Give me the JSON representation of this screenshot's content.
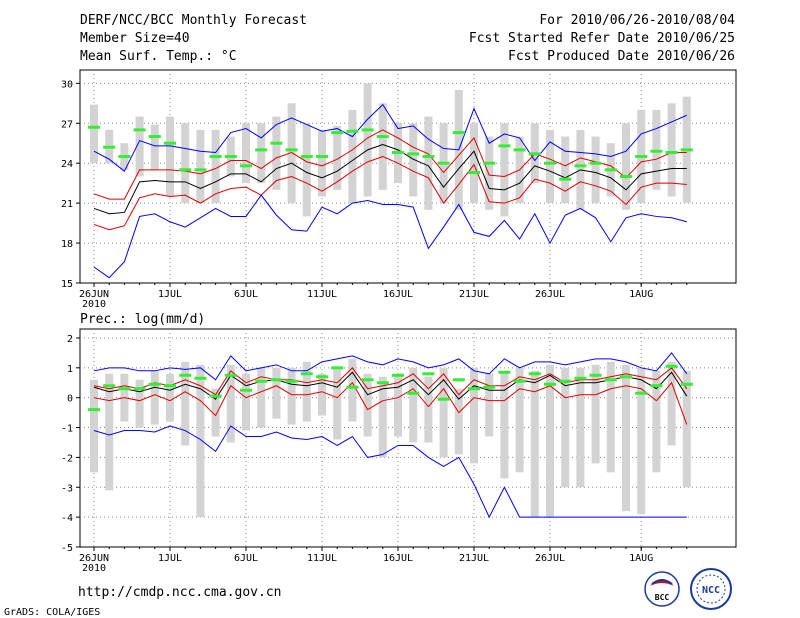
{
  "header": {
    "title": "DERF/NCC/BCC Monthly Forecast",
    "member_size": "Member Size=40",
    "variable": "Mean Surf. Temp.: °C",
    "period": "For 2010/06/26-2010/08/04",
    "start_date": "Fcst Started Refer Date 2010/06/25",
    "produced": "Fcst Produced Date 2010/06/26"
  },
  "footer": {
    "url": "http://cmdp.ncc.cma.gov.cn",
    "credit": "GrADS: COLA/IGES",
    "logo_bcc": "BCC",
    "logo_ncc": "NCC"
  },
  "colors": {
    "mean": "#000000",
    "band": "#e00000",
    "envelope": "#0000ff",
    "bar": "#d3d3d3",
    "median": "#33ee33",
    "grid": "#888888"
  },
  "chart_data": [
    {
      "type": "line",
      "title": "Mean Surf. Temp.: °C",
      "ylim": [
        15,
        31
      ],
      "yticks": [
        15,
        18,
        21,
        24,
        27,
        30
      ],
      "xlabels": [
        "26JUN",
        "1JUL",
        "6JUL",
        "11JUL",
        "16JUL",
        "21JUL",
        "26JUL",
        "1AUG"
      ],
      "xlabels_day_index": [
        0,
        5,
        10,
        15,
        20,
        25,
        30,
        36
      ],
      "xyear": "2010",
      "days": 40,
      "series": [
        {
          "name": "max",
          "values": [
            24.9,
            24.3,
            23.4,
            25.7,
            25.3,
            25.3,
            25.1,
            24.9,
            24.8,
            26.3,
            26.6,
            25.9,
            26.9,
            27.4,
            26.9,
            26.4,
            26.6,
            26.0,
            27.3,
            28.4,
            26.6,
            26.8,
            25.8,
            25.1,
            25.0,
            28.1,
            25.5,
            26.2,
            25.9,
            24.2,
            25.6,
            24.9,
            24.8,
            24.7,
            24.5,
            24.9,
            26.2,
            26.6,
            27.1,
            27.6
          ]
        },
        {
          "name": "upper",
          "values": [
            21.7,
            21.3,
            21.3,
            23.5,
            23.5,
            23.5,
            23.4,
            23.2,
            23.6,
            24.2,
            24.2,
            23.6,
            24.4,
            24.8,
            24.1,
            23.8,
            24.3,
            25.0,
            25.9,
            26.5,
            25.9,
            25.2,
            24.7,
            23.3,
            24.6,
            25.9,
            23.1,
            23.0,
            23.5,
            24.7,
            24.3,
            23.8,
            24.4,
            24.1,
            23.8,
            22.9,
            24.1,
            24.3,
            24.8,
            24.8
          ]
        },
        {
          "name": "mean",
          "values": [
            20.6,
            20.2,
            20.3,
            22.6,
            22.7,
            22.6,
            22.6,
            22.1,
            22.6,
            23.2,
            23.2,
            22.6,
            23.6,
            24.0,
            23.3,
            22.9,
            23.4,
            24.2,
            25.0,
            25.4,
            25.0,
            24.3,
            23.8,
            22.2,
            23.6,
            24.9,
            22.1,
            22.0,
            22.5,
            23.8,
            23.4,
            22.9,
            23.5,
            23.3,
            22.9,
            22.0,
            23.2,
            23.4,
            23.6,
            23.6
          ]
        },
        {
          "name": "lower",
          "values": [
            19.4,
            19.0,
            19.3,
            21.4,
            21.7,
            21.5,
            21.6,
            21.0,
            21.7,
            22.1,
            22.2,
            21.6,
            22.7,
            23.0,
            22.5,
            21.9,
            22.6,
            23.4,
            24.1,
            24.5,
            24.0,
            23.4,
            22.9,
            21.0,
            22.4,
            23.9,
            21.1,
            21.0,
            21.4,
            22.8,
            22.5,
            21.9,
            22.6,
            22.3,
            21.9,
            20.9,
            22.2,
            22.5,
            22.5,
            22.4
          ]
        },
        {
          "name": "min",
          "values": [
            16.2,
            15.4,
            16.6,
            20.0,
            20.2,
            19.6,
            19.2,
            19.9,
            20.6,
            20.0,
            20.0,
            21.6,
            20.1,
            19.0,
            18.9,
            20.7,
            20.2,
            21.0,
            21.2,
            20.9,
            20.9,
            20.7,
            17.6,
            19.2,
            20.9,
            18.8,
            18.5,
            19.7,
            18.3,
            20.2,
            18.0,
            20.1,
            20.6,
            19.9,
            18.1,
            19.9,
            20.2,
            20.0,
            19.9,
            19.6
          ]
        }
      ],
      "bars": {
        "low": [
          24.0,
          24.0,
          23.5,
          23.0,
          23.5,
          21.5,
          21.0,
          21.0,
          21.0,
          23.0,
          22.5,
          22.5,
          22.0,
          21.0,
          20.0,
          21.5,
          22.0,
          21.0,
          21.5,
          22.0,
          22.5,
          21.5,
          20.5,
          21.0,
          20.5,
          21.0,
          20.5,
          20.0,
          21.0,
          22.5,
          21.0,
          21.0,
          20.5,
          21.0,
          21.5,
          20.5,
          21.0,
          22.0,
          21.5,
          21.0
        ],
        "high": [
          28.4,
          26.5,
          25.5,
          27.5,
          26.9,
          27.5,
          27.0,
          26.5,
          26.5,
          26.0,
          27.0,
          27.0,
          27.5,
          28.5,
          27.0,
          26.5,
          26.8,
          28.0,
          30.0,
          28.5,
          27.0,
          27.0,
          27.5,
          27.0,
          29.5,
          27.0,
          26.0,
          27.0,
          26.0,
          27.0,
          26.5,
          26.0,
          26.5,
          26.0,
          25.5,
          27.0,
          28.0,
          28.0,
          28.5,
          29.0
        ],
        "median": [
          26.7,
          25.2,
          24.5,
          26.5,
          26.0,
          25.5,
          23.5,
          23.5,
          24.5,
          24.5,
          23.8,
          25.0,
          25.5,
          25.0,
          24.5,
          24.5,
          26.3,
          26.4,
          26.5,
          26.0,
          24.8,
          24.7,
          24.5,
          24.0,
          26.3,
          23.3,
          24.0,
          25.3,
          25.0,
          24.7,
          24.0,
          22.8,
          23.8,
          24.0,
          23.5,
          23.0,
          24.5,
          24.9,
          24.8,
          25.0
        ]
      }
    },
    {
      "type": "line",
      "title": "Prec.: log(mm/d)",
      "ylim": [
        -5,
        2.3
      ],
      "yticks": [
        -5,
        -4,
        -3,
        -2,
        -1,
        0,
        1,
        2
      ],
      "xlabels": [
        "26JUN",
        "1JUL",
        "6JUL",
        "11JUL",
        "16JUL",
        "21JUL",
        "26JUL",
        "1AUG"
      ],
      "xlabels_day_index": [
        0,
        5,
        10,
        15,
        20,
        25,
        30,
        36
      ],
      "xyear": "2010",
      "days": 40,
      "series": [
        {
          "name": "max",
          "values": [
            0.9,
            1.0,
            1.0,
            0.9,
            0.9,
            1.0,
            0.95,
            1.0,
            0.6,
            1.4,
            0.9,
            1.0,
            1.1,
            0.9,
            0.9,
            1.2,
            1.3,
            1.4,
            1.2,
            1.1,
            1.3,
            1.2,
            1.0,
            1.1,
            1.3,
            0.9,
            0.8,
            1.3,
            1.0,
            1.2,
            1.2,
            1.1,
            1.2,
            1.3,
            1.3,
            1.2,
            1.0,
            0.9,
            1.5,
            0.8
          ]
        },
        {
          "name": "upper",
          "values": [
            0.4,
            0.3,
            0.4,
            0.3,
            0.5,
            0.4,
            0.6,
            0.4,
            0.1,
            0.9,
            0.5,
            0.7,
            0.6,
            0.6,
            0.5,
            0.6,
            0.5,
            1.0,
            0.3,
            0.4,
            0.5,
            0.8,
            0.3,
            0.8,
            0.1,
            0.6,
            0.4,
            0.4,
            0.7,
            0.6,
            0.8,
            0.5,
            0.6,
            0.6,
            0.7,
            0.8,
            0.7,
            0.6,
            1.0,
            0.3
          ]
        },
        {
          "name": "mean",
          "values": [
            0.35,
            0.2,
            0.3,
            0.2,
            0.35,
            0.25,
            0.45,
            0.3,
            -0.05,
            0.75,
            0.4,
            0.55,
            0.6,
            0.45,
            0.4,
            0.5,
            0.35,
            0.85,
            0.1,
            0.3,
            0.35,
            0.6,
            0.1,
            0.6,
            -0.05,
            0.4,
            0.25,
            0.25,
            0.6,
            0.5,
            0.75,
            0.4,
            0.5,
            0.5,
            0.6,
            0.7,
            0.6,
            0.3,
            0.85,
            0.05
          ]
        },
        {
          "name": "lower",
          "values": [
            0.0,
            -0.1,
            0.0,
            -0.1,
            0.1,
            -0.1,
            0.2,
            -0.1,
            -0.6,
            0.4,
            0.0,
            0.2,
            0.4,
            0.1,
            0.1,
            0.2,
            0.0,
            0.5,
            -0.4,
            -0.1,
            0.0,
            0.3,
            -0.3,
            0.3,
            -0.5,
            0.0,
            -0.1,
            -0.1,
            0.3,
            0.2,
            0.4,
            0.0,
            0.1,
            0.1,
            0.3,
            0.4,
            0.3,
            -0.1,
            0.5,
            -0.9
          ]
        },
        {
          "name": "min",
          "values": [
            -1.1,
            -1.25,
            -1.1,
            -1.1,
            -1.15,
            -0.95,
            -1.1,
            -1.4,
            -1.8,
            -0.95,
            -1.3,
            -1.3,
            -1.15,
            -1.35,
            -1.4,
            -1.3,
            -1.6,
            -1.3,
            -2.0,
            -1.9,
            -1.6,
            -1.6,
            -2.0,
            -2.3,
            -2.0,
            -2.9,
            -4.0,
            -3.0,
            -4.0,
            -4.0,
            -4.0,
            -4.0,
            -4.0,
            -4.0,
            -4.0,
            -4.0,
            -4.0,
            -4.0,
            -4.0,
            -4.0
          ]
        }
      ],
      "bars": {
        "low": [
          -2.5,
          -3.1,
          -0.8,
          -1.0,
          -0.9,
          -0.8,
          -1.6,
          -4.0,
          -1.3,
          -1.5,
          -1.1,
          -1.0,
          -0.7,
          -0.9,
          -0.8,
          -0.6,
          -1.4,
          -0.8,
          -1.3,
          -2.0,
          -1.3,
          -1.5,
          -1.5,
          -2.0,
          -1.9,
          -2.2,
          -1.3,
          -2.7,
          -2.5,
          -4.0,
          -4.0,
          -3.0,
          -3.0,
          -2.2,
          -2.5,
          -3.8,
          -3.9,
          -2.5,
          -1.6,
          -3.0
        ],
        "high": [
          0.6,
          0.8,
          0.8,
          0.6,
          0.9,
          0.8,
          1.2,
          1.1,
          0.3,
          1.1,
          0.8,
          1.0,
          1.0,
          1.0,
          1.2,
          0.8,
          1.0,
          1.3,
          0.8,
          0.7,
          0.8,
          1.0,
          0.7,
          1.0,
          0.3,
          1.0,
          0.8,
          0.9,
          1.0,
          0.9,
          1.1,
          1.0,
          1.0,
          1.1,
          1.2,
          1.1,
          1.0,
          0.9,
          1.2,
          0.9
        ],
        "median": [
          -0.4,
          0.4,
          0.3,
          0.3,
          0.45,
          0.4,
          0.75,
          0.65,
          0.05,
          0.75,
          0.25,
          0.55,
          0.6,
          0.55,
          0.8,
          0.7,
          1.0,
          0.35,
          0.6,
          0.5,
          0.75,
          0.15,
          0.8,
          -0.05,
          0.6,
          0.3,
          0.35,
          0.85,
          0.55,
          0.8,
          0.45,
          0.55,
          0.65,
          0.75,
          0.6,
          0.7,
          0.15,
          0.4,
          1.05,
          0.45
        ]
      }
    }
  ]
}
